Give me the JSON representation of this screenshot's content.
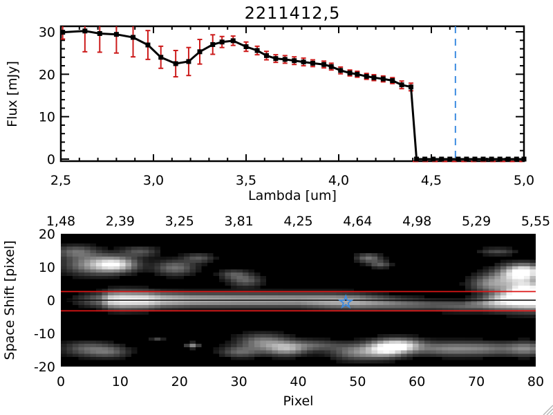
{
  "title": "2211412,5",
  "colors": {
    "black": "#000000",
    "red": "#c42020",
    "error_red": "#cc1a1a",
    "dash_red": "#dd1515",
    "blue": "#3c8be0",
    "grip_gray": "#b8b8b8",
    "background": "#ffffff"
  },
  "chart_data": [
    {
      "id": "spectrum",
      "type": "line",
      "title": "2211412,5",
      "xlabel": "Lambda [um]",
      "ylabel": "Flux [mJy]",
      "xlim": [
        2.5,
        5.0
      ],
      "ylim": [
        0,
        31.5
      ],
      "xticks": [
        2.5,
        3.0,
        3.5,
        4.0,
        4.5,
        5.0
      ],
      "xtick_labels": [
        "2,5",
        "3,0",
        "3,5",
        "4,0",
        "4,5",
        "5,0"
      ],
      "yticks": [
        0,
        10,
        20,
        30
      ],
      "ytick_labels": [
        "0",
        "10",
        "20",
        "30"
      ],
      "x_minor_step": 0.1,
      "y_minor_step": 2,
      "grid": false,
      "marker": "filled-square",
      "reference_lines": {
        "blue_dashed_vline_x": 4.63,
        "red_dashed_hline_y": 0,
        "red_dashed_from_x": 4.4,
        "red_dashed_to_x": 5.0
      },
      "lambda": [
        2.51,
        2.63,
        2.71,
        2.8,
        2.89,
        2.97,
        3.04,
        3.12,
        3.19,
        3.25,
        3.32,
        3.37,
        3.43,
        3.5,
        3.56,
        3.61,
        3.66,
        3.71,
        3.76,
        3.81,
        3.86,
        3.92,
        3.96,
        4.01,
        4.06,
        4.1,
        4.15,
        4.19,
        4.24,
        4.29,
        4.34,
        4.39,
        4.42,
        4.465,
        4.51,
        4.555,
        4.6,
        4.645,
        4.69,
        4.735,
        4.78,
        4.825,
        4.87,
        4.915,
        4.96,
        5.0
      ],
      "flux": [
        29.9,
        30.2,
        29.6,
        29.4,
        28.7,
        26.9,
        24.0,
        22.5,
        23.0,
        25.3,
        27.0,
        27.6,
        27.9,
        26.5,
        25.6,
        24.4,
        23.7,
        23.5,
        23.2,
        22.9,
        22.6,
        22.3,
        21.8,
        20.9,
        20.3,
        20.0,
        19.5,
        19.2,
        18.9,
        18.5,
        17.5,
        17.0,
        0,
        0,
        0,
        0,
        0,
        0,
        0,
        0,
        0,
        0,
        0,
        0,
        0,
        0
      ],
      "flux_err": [
        1.6,
        4.9,
        4.4,
        4.4,
        4.6,
        3.4,
        2.6,
        3.1,
        3.3,
        2.9,
        2.3,
        1.3,
        1.1,
        1.1,
        1.0,
        1.0,
        0.9,
        0.9,
        0.9,
        0.9,
        0.8,
        0.8,
        0.8,
        0.8,
        0.7,
        0.7,
        0.7,
        0.7,
        0.7,
        0.7,
        0.9,
        0.9,
        0,
        0,
        0,
        0,
        0,
        0,
        0,
        0,
        0,
        0,
        0,
        0,
        0,
        0
      ]
    },
    {
      "id": "spatial-spectral-image",
      "type": "heatmap",
      "xlabel": "Pixel",
      "ylabel": "Space Shift [pixel]",
      "xlim": [
        0,
        80
      ],
      "ylim": [
        -20,
        20
      ],
      "xticks": [
        0,
        10,
        20,
        30,
        40,
        50,
        60,
        70,
        80
      ],
      "xtick_labels": [
        "0",
        "10",
        "20",
        "30",
        "40",
        "50",
        "60",
        "70",
        "80"
      ],
      "top_axis_tick_labels": [
        "1,48",
        "2,39",
        "3,25",
        "3,81",
        "4,25",
        "4,64",
        "4,98",
        "5,29",
        "5,55"
      ],
      "yticks": [
        20,
        10,
        0,
        -10,
        -20
      ],
      "ytick_labels": [
        "20",
        "10",
        "0",
        "-10",
        "-20"
      ],
      "x_minor_step": 1,
      "y_minor_step": 1,
      "aperture_lines_y": [
        2.6,
        -3.2
      ],
      "trace_line_y": 0,
      "star_marker": {
        "x": 48,
        "y": -0.6
      },
      "band_keypoints": [
        [
          0,
          0,
          0,
          1.4
        ],
        [
          3,
          55,
          0,
          1.4
        ],
        [
          6,
          115,
          0,
          1.6
        ],
        [
          8,
          235,
          0,
          1.8
        ],
        [
          10,
          255,
          0,
          1.9
        ],
        [
          14,
          250,
          0,
          1.8
        ],
        [
          17,
          205,
          0,
          1.6
        ],
        [
          22,
          180,
          0,
          1.5
        ],
        [
          30,
          170,
          0,
          1.5
        ],
        [
          40,
          165,
          0,
          1.5
        ],
        [
          46,
          185,
          -0.3,
          1.6
        ],
        [
          50,
          180,
          -0.5,
          1.6
        ],
        [
          54,
          145,
          -0.8,
          1.5
        ],
        [
          58,
          115,
          -1.2,
          1.4
        ],
        [
          63,
          90,
          -1.5,
          1.3
        ],
        [
          68,
          100,
          -1.8,
          1.3
        ],
        [
          71,
          135,
          -1.2,
          1.5
        ],
        [
          74,
          220,
          -0.5,
          1.9
        ],
        [
          77,
          255,
          0,
          2.2
        ],
        [
          80,
          255,
          0,
          2.3
        ]
      ],
      "blobs": [
        [
          5,
          11,
          3.5,
          2.2,
          140
        ],
        [
          9,
          11,
          2.5,
          1.6,
          185
        ],
        [
          2,
          15,
          2.5,
          1.3,
          100
        ],
        [
          13,
          15,
          2.2,
          1.1,
          85
        ],
        [
          19,
          10,
          2.4,
          1.6,
          115
        ],
        [
          23,
          13,
          1.8,
          1.0,
          85
        ],
        [
          31,
          6,
          2.0,
          1.3,
          95
        ],
        [
          29,
          8,
          1.8,
          1.0,
          80
        ],
        [
          52,
          13,
          1.5,
          1.0,
          115
        ],
        [
          54,
          11,
          1.3,
          0.8,
          90
        ],
        [
          74,
          15,
          2.2,
          0.8,
          75
        ],
        [
          73,
          5,
          2.5,
          2.0,
          140
        ],
        [
          77,
          8,
          2.5,
          2.0,
          165
        ],
        [
          79,
          3,
          2.2,
          2.5,
          210
        ],
        [
          79,
          9,
          2.0,
          1.5,
          170
        ],
        [
          4,
          -15,
          3.0,
          1.6,
          95
        ],
        [
          8,
          -16,
          2.4,
          1.3,
          80
        ],
        [
          16,
          -12,
          0.8,
          0.6,
          70
        ],
        [
          22,
          -14,
          0.8,
          0.6,
          135
        ],
        [
          34,
          -13,
          3.0,
          1.8,
          130
        ],
        [
          38,
          -15,
          2.4,
          1.5,
          150
        ],
        [
          30,
          -16,
          2.4,
          1.2,
          95
        ],
        [
          43,
          -14,
          3.0,
          1.2,
          85
        ],
        [
          50,
          -16,
          3.0,
          1.8,
          125
        ],
        [
          55,
          -15,
          2.4,
          1.8,
          215
        ],
        [
          58,
          -14,
          2.4,
          1.5,
          170
        ],
        [
          65,
          -15,
          3.6,
          1.5,
          115
        ],
        [
          72,
          -15,
          3.6,
          1.5,
          105
        ],
        [
          79,
          -15,
          2.4,
          1.5,
          125
        ]
      ]
    }
  ]
}
